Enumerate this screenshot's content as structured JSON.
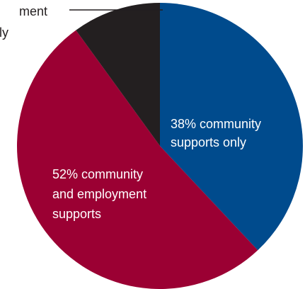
{
  "chart_data": {
    "type": "pie",
    "slices": [
      {
        "name": "community supports only",
        "value": 38,
        "color": "#004b8d",
        "label_lines": [
          "38% community",
          "supports only"
        ]
      },
      {
        "name": "community and employment supports",
        "value": 52,
        "color": "#9b0033",
        "label_lines": [
          "52% community",
          "and employment",
          "supports"
        ]
      },
      {
        "name": "employment supports only",
        "value": 10,
        "color": "#231f20",
        "label_lines": [
          "ment",
          "ly"
        ]
      }
    ],
    "start": "top",
    "direction": "clockwise",
    "callout_line_color": "#231f20"
  }
}
